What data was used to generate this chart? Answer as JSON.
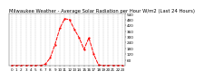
{
  "title": "Milwaukee Weather - Average Solar Radiation per Hour W/m2 (Last 24 Hours)",
  "hours": [
    0,
    1,
    2,
    3,
    4,
    5,
    6,
    7,
    8,
    9,
    10,
    11,
    12,
    13,
    14,
    15,
    16,
    17,
    18,
    19,
    20,
    21,
    22,
    23
  ],
  "values": [
    0,
    0,
    0,
    0,
    0,
    0,
    1,
    15,
    80,
    220,
    390,
    490,
    480,
    380,
    290,
    170,
    290,
    120,
    5,
    0,
    0,
    0,
    0,
    0
  ],
  "line_color": "#ff0000",
  "bg_color": "#ffffff",
  "grid_color": "#999999",
  "ylabel_color": "#000000",
  "ylim": [
    0,
    540
  ],
  "ytick_vals": [
    60,
    120,
    180,
    240,
    300,
    360,
    420,
    480,
    540
  ],
  "ytick_labels": [
    "60",
    "120",
    "180",
    "240",
    "300",
    "360",
    "420",
    "480",
    "540"
  ],
  "title_fontsize": 3.8,
  "tick_fontsize": 3.0
}
